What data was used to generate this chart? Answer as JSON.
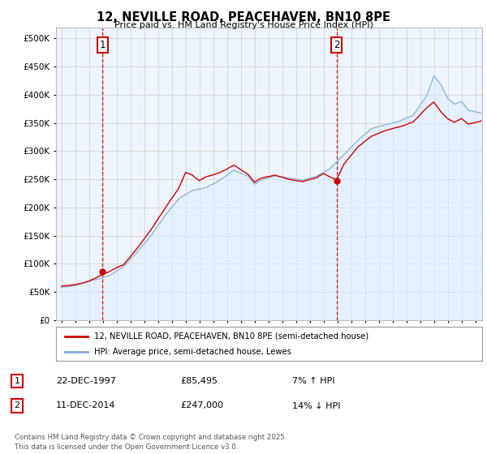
{
  "title_line1": "12, NEVILLE ROAD, PEACEHAVEN, BN10 8PE",
  "title_line2": "Price paid vs. HM Land Registry's House Price Index (HPI)",
  "legend_label1": "12, NEVILLE ROAD, PEACEHAVEN, BN10 8PE (semi-detached house)",
  "legend_label2": "HPI: Average price, semi-detached house, Lewes",
  "annotation1_date": "22-DEC-1997",
  "annotation1_price": "£85,495",
  "annotation1_hpi": "7% ↑ HPI",
  "annotation2_date": "11-DEC-2014",
  "annotation2_price": "£247,000",
  "annotation2_hpi": "14% ↓ HPI",
  "footer": "Contains HM Land Registry data © Crown copyright and database right 2025.\nThis data is licensed under the Open Government Licence v3.0.",
  "sale1_x": 1997.97,
  "sale1_y": 85495,
  "sale2_x": 2014.94,
  "sale2_y": 247000,
  "line_color_property": "#cc0000",
  "line_color_hpi": "#7eadd4",
  "fill_color_hpi": "#ddeeff",
  "marker_color": "#cc0000",
  "vline_color": "#cc0000",
  "annotation_box_color": "#cc0000",
  "grid_color": "#cccccc",
  "background_color": "#ffffff",
  "plot_bg_color": "#eef4fb",
  "ylim": [
    0,
    520000
  ],
  "xlim": [
    1994.6,
    2025.5
  ],
  "yticks": [
    0,
    50000,
    100000,
    150000,
    200000,
    250000,
    300000,
    350000,
    400000,
    450000,
    500000
  ]
}
